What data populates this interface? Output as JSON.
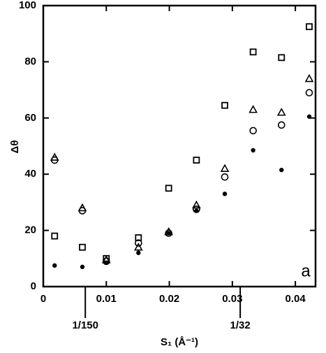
{
  "chart_data": {
    "type": "scatter",
    "x": [
      0.0018,
      0.0062,
      0.01,
      0.0151,
      0.0199,
      0.0243,
      0.0288,
      0.0333,
      0.0378,
      0.0422
    ],
    "series": [
      {
        "marker": "square",
        "color": "#000000",
        "values": [
          18,
          14,
          10,
          17.4,
          35,
          45,
          64.5,
          83.5,
          81.5,
          92.5
        ]
      },
      {
        "marker": "triangle",
        "color": "#000000",
        "values": [
          46,
          28,
          9.5,
          14,
          19.5,
          29,
          42,
          63,
          62,
          74
        ]
      },
      {
        "marker": "circle",
        "color": "#000000",
        "values": [
          45,
          27,
          9,
          15.5,
          19,
          27.5,
          39,
          55.5,
          57.5,
          69
        ]
      },
      {
        "marker": "dot",
        "color": "#000000",
        "values": [
          7.5,
          7,
          8.5,
          12,
          19,
          27,
          33,
          48.5,
          41.5,
          60.5
        ]
      }
    ],
    "xlabel": "S₁ (Å⁻¹)",
    "ylabel": "Δθ",
    "xlim": [
      0,
      0.0432
    ],
    "ylim": [
      0,
      100
    ],
    "xticks": [
      0,
      0.01,
      0.02,
      0.03,
      0.04
    ],
    "yticks": [
      0,
      20,
      40,
      60,
      80,
      100
    ],
    "annotations": [
      {
        "text": "1/150",
        "x": 0.00667
      },
      {
        "text": "1/32",
        "x": 0.03125
      }
    ],
    "panel_label": "a"
  }
}
